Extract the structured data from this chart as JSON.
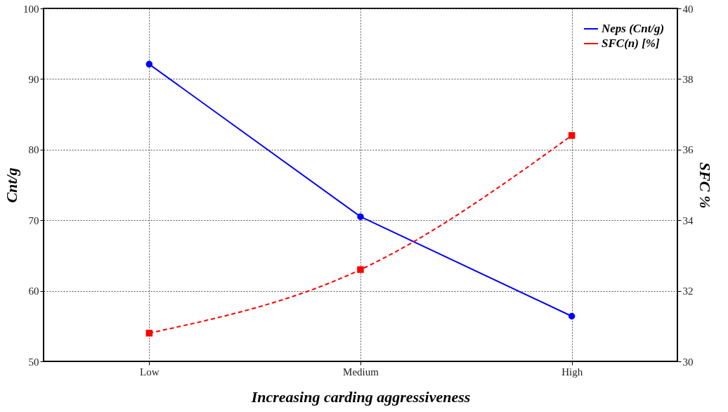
{
  "chart_data": {
    "type": "line",
    "xlabel": "Increasing carding aggressiveness",
    "ylabel": "Cnt/g",
    "y2label": "SFC %",
    "categories": [
      "Low",
      "Medium",
      "High"
    ],
    "series": [
      {
        "name": "Neps (Cnt/g)",
        "color": "#0000ff",
        "values": [
          92.1,
          70.5,
          56.4
        ],
        "marker": "circle",
        "line_style": "solid"
      },
      {
        "name": "SFC(n) [%]",
        "color": "#ff0000",
        "values": [
          30.8,
          32.6,
          36.4
        ],
        "marker": "square",
        "line_style": "dashed",
        "axis": "y2"
      }
    ],
    "ylim": [
      50,
      100
    ],
    "yticks": [
      50,
      60,
      70,
      80,
      90,
      100
    ],
    "y2lim": [
      30,
      40
    ],
    "y2ticks": [
      30,
      32,
      34,
      36,
      38,
      40
    ],
    "grid": true,
    "legend": "top right"
  }
}
